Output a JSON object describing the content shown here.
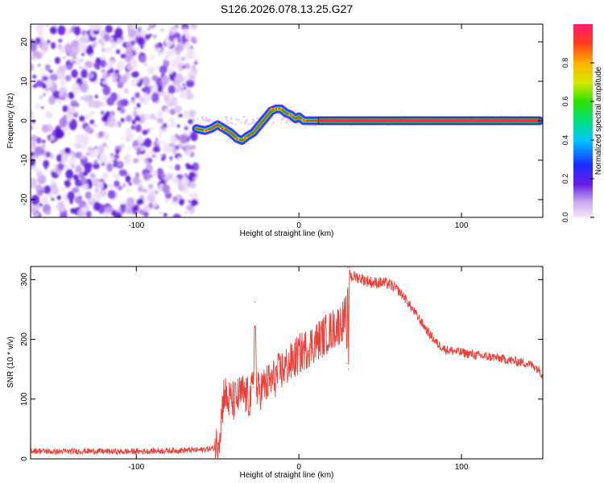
{
  "page": {
    "title": "S126.2026.078.13.25.G27"
  },
  "chart_data": [
    {
      "type": "heatmap",
      "name": "spectrogram",
      "xlabel": "Height of straight line (km)",
      "ylabel": "Frequency (Hz)",
      "xlim": [
        -165,
        150
      ],
      "ylim": [
        -24.5,
        24.5
      ],
      "xticks": [
        -100,
        0,
        100
      ],
      "yticks": [
        -20,
        -10,
        0,
        10,
        20
      ],
      "noise_region": {
        "x_from": -165,
        "x_to": -63,
        "freq_from": -24.5,
        "freq_to": 24.5
      },
      "signal_track": {
        "x": [
          -63,
          -58,
          -54,
          -50,
          -46,
          -42,
          -38,
          -35,
          -32,
          -28,
          -24,
          -20,
          -17,
          -14,
          -11,
          -8,
          -5,
          -2,
          0,
          3,
          6,
          10,
          20,
          60,
          100,
          130,
          148
        ],
        "frequency": [
          -2,
          -2.5,
          -2,
          -1,
          -2,
          -3,
          -4.5,
          -5,
          -4,
          -3,
          -1,
          1,
          2.5,
          3,
          3,
          2,
          1.5,
          0.5,
          1,
          0,
          0,
          0,
          0,
          0,
          0,
          0,
          0
        ]
      },
      "colorbar": {
        "label": "Normalized spectral amplitude",
        "range": [
          0.0,
          1.0
        ],
        "ticks": [
          "0.0",
          "0.2",
          "0.4",
          "0.6",
          "0.8"
        ],
        "tick_values": [
          0.0,
          0.2,
          0.4,
          0.6,
          0.8
        ]
      }
    },
    {
      "type": "line",
      "name": "snr",
      "xlabel": "Height of straight line (km)",
      "ylabel": "SNR (10 * v/v)",
      "xlim": [
        -165,
        150
      ],
      "ylim": [
        0,
        322
      ],
      "xticks": [
        -100,
        0,
        100
      ],
      "yticks": [
        0,
        100,
        200,
        300
      ],
      "color": "#e8403a",
      "series": [
        {
          "name": "SNR",
          "x": [
            -165,
            -150,
            -130,
            -110,
            -90,
            -75,
            -60,
            -52,
            -50,
            -48,
            -46,
            -44,
            -42,
            -40,
            -35,
            -30,
            -28,
            -27,
            -26,
            -22,
            -15,
            -10,
            -5,
            0,
            5,
            10,
            15,
            20,
            25,
            29,
            29.5,
            30,
            30.5,
            31,
            31.2,
            32,
            35,
            40,
            45,
            50,
            55,
            60,
            65,
            70,
            75,
            80,
            85,
            90,
            100,
            110,
            120,
            130,
            140,
            145,
            148,
            150
          ],
          "y": [
            14,
            12,
            13,
            12,
            13,
            14,
            15,
            18,
            25,
            60,
            115,
            95,
            100,
            95,
            110,
            100,
            120,
            262,
            110,
            120,
            135,
            150,
            160,
            175,
            185,
            195,
            205,
            215,
            225,
            240,
            160,
            320,
            150,
            300,
            320,
            305,
            305,
            300,
            295,
            295,
            293,
            285,
            270,
            250,
            230,
            210,
            193,
            183,
            178,
            173,
            170,
            165,
            160,
            155,
            148,
            140
          ]
        }
      ]
    }
  ]
}
